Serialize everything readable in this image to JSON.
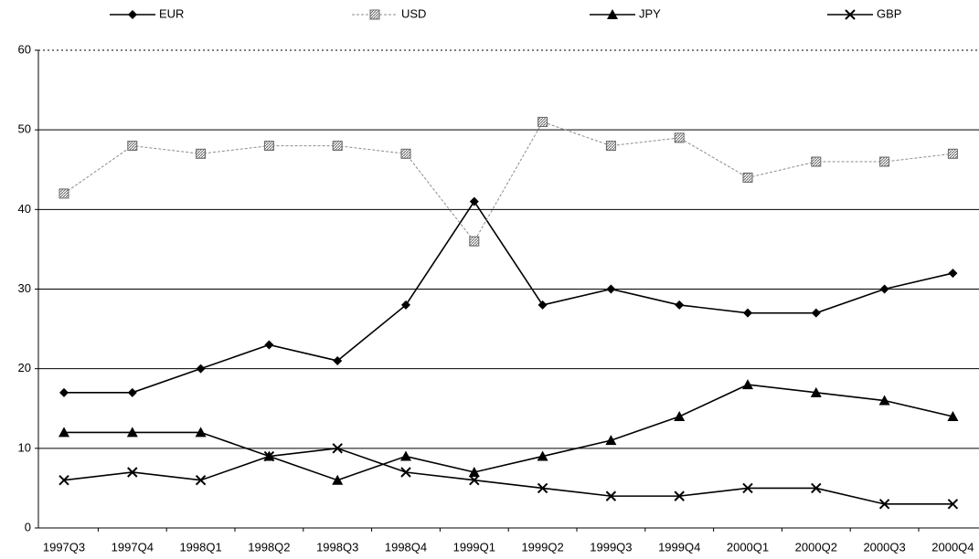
{
  "chart_data": {
    "type": "line",
    "categories": [
      "1997Q3",
      "1997Q4",
      "1998Q1",
      "1998Q2",
      "1998Q3",
      "1998Q4",
      "1999Q1",
      "1999Q2",
      "1999Q3",
      "1999Q4",
      "2000Q1",
      "2000Q2",
      "2000Q3",
      "2000Q4"
    ],
    "series": [
      {
        "name": "EUR",
        "color": "#000000",
        "marker": "diamond",
        "values": [
          17,
          17,
          20,
          23,
          21,
          28,
          41,
          28,
          30,
          28,
          27,
          27,
          30,
          32
        ]
      },
      {
        "name": "USD",
        "color": "#8c8c8c",
        "marker": "square",
        "dashed": true,
        "values": [
          42,
          48,
          47,
          48,
          48,
          47,
          36,
          51,
          48,
          49,
          44,
          46,
          46,
          47
        ]
      },
      {
        "name": "JPY",
        "color": "#000000",
        "marker": "triangle",
        "values": [
          12,
          12,
          12,
          9,
          6,
          9,
          7,
          9,
          11,
          14,
          18,
          17,
          16,
          14
        ]
      },
      {
        "name": "GBP",
        "color": "#000000",
        "marker": "cross",
        "values": [
          6,
          7,
          6,
          9,
          10,
          7,
          6,
          5,
          4,
          4,
          5,
          5,
          3,
          3
        ]
      }
    ],
    "ylim": [
      0,
      60
    ],
    "yticks": [
      0,
      10,
      20,
      30,
      40,
      50,
      60
    ],
    "grid": true,
    "legend": "top"
  }
}
